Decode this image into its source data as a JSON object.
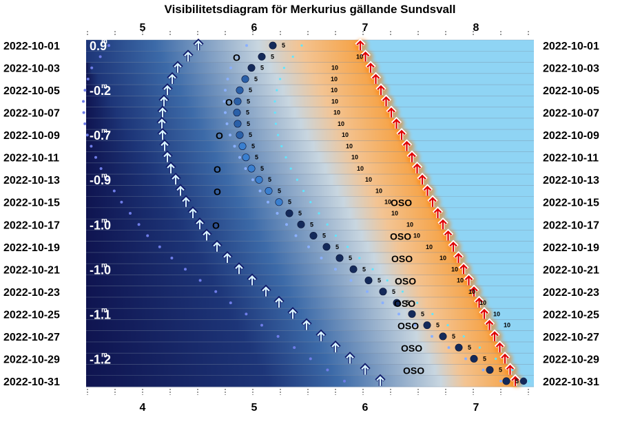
{
  "chart_data": {
    "type": "visibility-diagram",
    "title": "Visibilitetsdiagram för Merkurius gällande Sundsvall",
    "top_axis_ticks": [
      "5",
      "6",
      "7",
      "8"
    ],
    "bottom_axis_ticks": [
      "4",
      "5",
      "6",
      "7"
    ],
    "dates": [
      "2022-10-01",
      "2022-10-03",
      "2022-10-05",
      "2022-10-07",
      "2022-10-09",
      "2022-10-11",
      "2022-10-13",
      "2022-10-15",
      "2022-10-17",
      "2022-10-19",
      "2022-10-21",
      "2022-10-23",
      "2022-10-25",
      "2022-10-27",
      "2022-10-29",
      "2022-10-31"
    ],
    "magnitudes": [
      {
        "date": "2022-10-01",
        "mag": "0.9"
      },
      {
        "date": "2022-10-05",
        "mag": "-0.2"
      },
      {
        "date": "2022-10-09",
        "mag": "-0.7"
      },
      {
        "date": "2022-10-13",
        "mag": "-0.9"
      },
      {
        "date": "2022-10-17",
        "mag": "-1.0"
      },
      {
        "date": "2022-10-21",
        "mag": "-1.0"
      },
      {
        "date": "2022-10-25",
        "mag": "-1.1"
      },
      {
        "date": "2022-10-29",
        "mag": "-1.2"
      }
    ],
    "altitude_labels": [
      "5",
      "10"
    ],
    "direction_labels": [
      "O",
      "OSO"
    ],
    "colors": {
      "night": "#0f1450",
      "twilight_blue": "#3c6aa8",
      "dawn_light": "#c8d6e0",
      "dawn_orange": "#f6a040",
      "day": "#8fd4f4",
      "sunrise_arrow": "#e00000",
      "arrow": "#ffffff"
    }
  }
}
